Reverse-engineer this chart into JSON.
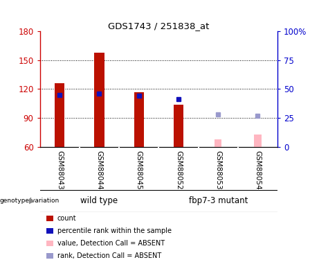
{
  "title": "GDS1743 / 251838_at",
  "samples": [
    "GSM88043",
    "GSM88044",
    "GSM88045",
    "GSM88052",
    "GSM88053",
    "GSM88054"
  ],
  "ylim_left": [
    60,
    180
  ],
  "ylim_right": [
    0,
    100
  ],
  "yticks_left": [
    60,
    90,
    120,
    150,
    180
  ],
  "yticks_right": [
    0,
    25,
    50,
    75,
    100
  ],
  "bar_base": 60,
  "red_bars": [
    126,
    158,
    117,
    104,
    null,
    null
  ],
  "pink_bars": [
    null,
    null,
    null,
    null,
    68,
    73
  ],
  "blue_markers": [
    45,
    46,
    44,
    41,
    null,
    null
  ],
  "light_blue_markers": [
    null,
    null,
    null,
    null,
    28,
    27
  ],
  "bar_width": 0.25,
  "pink_bar_width": 0.18,
  "red_color": "#BB1100",
  "pink_color": "#FFB6C1",
  "blue_color": "#1111BB",
  "light_blue_color": "#9999CC",
  "bg_color": "#FFFFFF",
  "plot_bg": "#FFFFFF",
  "label_area_bg": "#C8C8C8",
  "group_area_bg": "#44EE44",
  "left_axis_color": "#CC0000",
  "right_axis_color": "#0000CC",
  "wild_type_label": "wild type",
  "mutant_label": "fbp7-3 mutant",
  "genotype_label": "genotype/variation",
  "legend_items": [
    {
      "label": "count",
      "color": "#BB1100"
    },
    {
      "label": "percentile rank within the sample",
      "color": "#1111BB"
    },
    {
      "label": "value, Detection Call = ABSENT",
      "color": "#FFB6C1"
    },
    {
      "label": "rank, Detection Call = ABSENT",
      "color": "#9999CC"
    }
  ]
}
